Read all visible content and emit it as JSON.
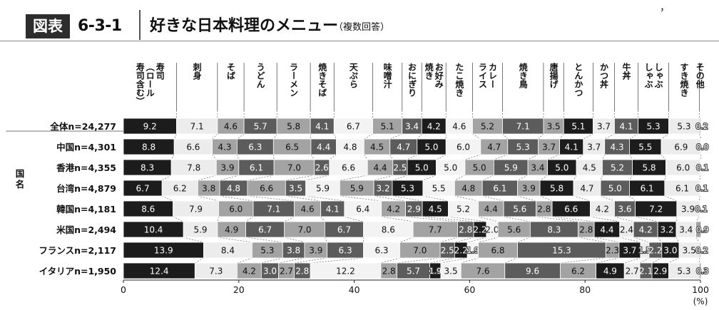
{
  "header": {
    "badge": "図表",
    "figure_number": "6-3-1",
    "title": "好きな日本料理のメニュー",
    "subtitle": "（複数回答）",
    "corner_mark": "，"
  },
  "chart_data": {
    "type": "bar",
    "orientation": "horizontal",
    "stacked": true,
    "y_group_label": "国名",
    "xlim": [
      0,
      100
    ],
    "xticks": [
      0,
      20,
      40,
      60,
      80,
      100
    ],
    "xunit": "(%)",
    "legend_placement": "top",
    "categories": [
      "寿司(ロール寿司含む)",
      "刺身",
      "そば",
      "うどん",
      "ラーメン",
      "焼きそば",
      "天ぷら",
      "味噌汁",
      "おにぎり",
      "お好み焼き",
      "たこ焼き",
      "カレーライス",
      "焼き鳥",
      "唐揚げ",
      "とんかつ",
      "かつ丼",
      "牛丼",
      "しゃぶしゃぶ",
      "すき焼き",
      "その他"
    ],
    "category_labels": [
      [
        "寿司",
        "（ロール",
        "寿司含む）"
      ],
      [
        "刺身"
      ],
      [
        "そば"
      ],
      [
        "うどん"
      ],
      [
        "ラーメン"
      ],
      [
        "焼きそば"
      ],
      [
        "天ぷら"
      ],
      [
        "味噌汁"
      ],
      [
        "おにぎり"
      ],
      [
        "お好み",
        "焼き"
      ],
      [
        "たこ焼き"
      ],
      [
        "カレー",
        "ライス"
      ],
      [
        "焼き鳥"
      ],
      [
        "唐揚げ"
      ],
      [
        "とんかつ"
      ],
      [
        "かつ丼"
      ],
      [
        "牛丼"
      ],
      [
        "しゃぶ",
        "しゃぶ"
      ],
      [
        "すき焼き"
      ],
      [
        "その他"
      ]
    ],
    "colors": [
      "#1c1c1c",
      "#ececec",
      "#a3a3a3",
      "#5c5c5c",
      "#a3a3a3",
      "#5c5c5c",
      "#f3f3f3",
      "#a3a3a3",
      "#5c5c5c",
      "#1c1c1c",
      "#f3f3f3",
      "#a3a3a3",
      "#5c5c5c",
      "#a3a3a3",
      "#1c1c1c",
      "#ececec",
      "#5c5c5c",
      "#1c1c1c",
      "#ececec",
      "#a3a3a3"
    ],
    "series": [
      {
        "name": "全体n=24,277",
        "values": [
          9.2,
          7.1,
          4.6,
          5.7,
          5.8,
          4.1,
          6.7,
          5.1,
          3.4,
          4.2,
          4.6,
          5.2,
          7.1,
          3.5,
          5.1,
          3.7,
          4.1,
          5.3,
          5.3,
          0.2
        ]
      },
      {
        "name": "中国n=4,301",
        "values": [
          8.8,
          6.6,
          4.3,
          6.3,
          6.5,
          4.4,
          4.8,
          4.5,
          4.7,
          5.0,
          6.0,
          4.7,
          5.3,
          3.7,
          4.1,
          3.7,
          4.3,
          5.5,
          6.9,
          0.0
        ]
      },
      {
        "name": "香港n=4,355",
        "values": [
          8.3,
          7.8,
          3.9,
          6.1,
          7.0,
          2.6,
          6.6,
          4.4,
          2.5,
          5.0,
          5.0,
          5.0,
          5.9,
          3.4,
          5.0,
          4.5,
          5.2,
          5.8,
          6.0,
          0.1
        ]
      },
      {
        "name": "台湾n=4,879",
        "values": [
          6.7,
          6.2,
          3.8,
          4.8,
          6.6,
          3.5,
          5.9,
          5.9,
          3.2,
          5.3,
          5.5,
          4.8,
          6.1,
          3.9,
          5.8,
          4.7,
          5.0,
          6.1,
          6.1,
          0.1
        ]
      },
      {
        "name": "韓国n=4,181",
        "values": [
          8.6,
          7.9,
          6.0,
          7.1,
          4.6,
          4.1,
          6.4,
          4.2,
          2.9,
          4.5,
          5.2,
          4.4,
          5.6,
          2.8,
          6.6,
          4.2,
          3.6,
          7.2,
          3.9,
          0.1
        ]
      },
      {
        "name": "米国n=2,494",
        "values": [
          10.4,
          5.9,
          4.9,
          6.7,
          7.0,
          6.7,
          8.6,
          7.7,
          2.8,
          2.2,
          2.0,
          5.6,
          8.3,
          2.8,
          4.4,
          2.4,
          4.2,
          3.2,
          3.4,
          0.9
        ]
      },
      {
        "name": "フランスn=2,117",
        "values": [
          13.9,
          8.4,
          5.3,
          3.8,
          3.9,
          6.3,
          6.3,
          7.0,
          2.5,
          2.2,
          1.9,
          6.8,
          15.3,
          2.3,
          3.7,
          1.5,
          2.2,
          3.0,
          3.5,
          0.2
        ]
      },
      {
        "name": "イタリアn=1,950",
        "values": [
          12.4,
          7.3,
          4.2,
          3.0,
          2.7,
          2.8,
          12.2,
          2.8,
          5.7,
          1.9,
          3.5,
          7.6,
          9.6,
          6.2,
          4.9,
          2.7,
          2.1,
          2.9,
          5.3,
          0.3
        ]
      }
    ]
  }
}
